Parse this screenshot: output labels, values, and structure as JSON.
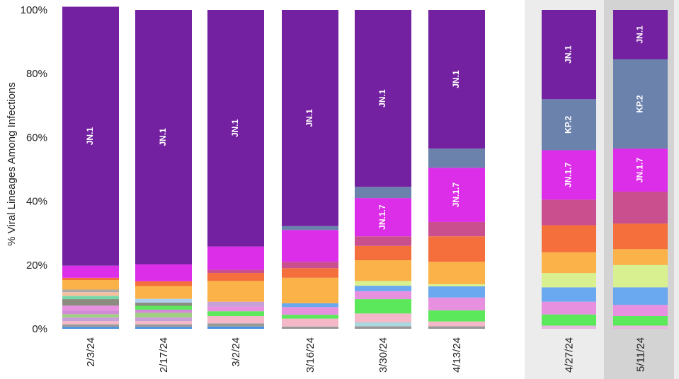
{
  "chart_data": {
    "type": "bar",
    "stacked": true,
    "ylabel": "% Viral Lineages Among Infections",
    "yticks": [
      "0%",
      "20%",
      "40%",
      "60%",
      "80%",
      "100%"
    ],
    "ylim": [
      0,
      100
    ],
    "categories": [
      "2/3/24",
      "2/17/24",
      "3/2/24",
      "3/16/24",
      "3/30/24",
      "4/13/24",
      "4/27/24",
      "5/11/24"
    ],
    "projected_periods": [
      "4/27/24",
      "5/11/24"
    ],
    "bars": [
      {
        "date": "2/3/24",
        "segments": [
          {
            "pct": 0.6,
            "color": "#4a90e2"
          },
          {
            "pct": 0.8,
            "color": "#999999"
          },
          {
            "pct": 1.0,
            "color": "#f4b8c8"
          },
          {
            "pct": 1.2,
            "color": "#c8a0d8"
          },
          {
            "pct": 1.0,
            "color": "#9fd080"
          },
          {
            "pct": 1.2,
            "color": "#d28ad8"
          },
          {
            "pct": 1.5,
            "color": "#e890e0"
          },
          {
            "pct": 2.0,
            "color": "#8b8b80"
          },
          {
            "pct": 1.0,
            "color": "#77d9a8"
          },
          {
            "pct": 1.2,
            "color": "#f5c0a0"
          },
          {
            "pct": 0.8,
            "color": "#aaaaaa"
          },
          {
            "pct": 3.0,
            "color": "#fbb248"
          },
          {
            "pct": 0.7,
            "color": "#f46f3c"
          },
          {
            "pct": 3.8,
            "color": "#dc2de8",
            "label": ""
          },
          {
            "pct": 81.2,
            "color": "#7321a0",
            "label": "JN.1"
          }
        ]
      },
      {
        "date": "2/17/24",
        "segments": [
          {
            "pct": 0.6,
            "color": "#4a90e2"
          },
          {
            "pct": 0.8,
            "color": "#999999"
          },
          {
            "pct": 1.0,
            "color": "#f4b8c8"
          },
          {
            "pct": 1.2,
            "color": "#c8a0d8"
          },
          {
            "pct": 1.4,
            "color": "#9fd080"
          },
          {
            "pct": 1.0,
            "color": "#d28ad8"
          },
          {
            "pct": 1.2,
            "color": "#5be85b"
          },
          {
            "pct": 1.0,
            "color": "#8b8b80"
          },
          {
            "pct": 1.2,
            "color": "#b0d0f0"
          },
          {
            "pct": 4.0,
            "color": "#fbb248"
          },
          {
            "pct": 1.5,
            "color": "#f46f3c"
          },
          {
            "pct": 5.3,
            "color": "#dc2de8"
          },
          {
            "pct": 79.8,
            "color": "#7321a0",
            "label": "JN.1"
          }
        ]
      },
      {
        "date": "3/2/24",
        "segments": [
          {
            "pct": 0.7,
            "color": "#4a90e2"
          },
          {
            "pct": 1.0,
            "color": "#999999"
          },
          {
            "pct": 2.3,
            "color": "#f4b8c8"
          },
          {
            "pct": 1.5,
            "color": "#5be85b"
          },
          {
            "pct": 1.5,
            "color": "#e890e0"
          },
          {
            "pct": 1.5,
            "color": "#c8a0d8"
          },
          {
            "pct": 6.5,
            "color": "#fbb248"
          },
          {
            "pct": 2.5,
            "color": "#f46f3c"
          },
          {
            "pct": 1.0,
            "color": "#c94f8f"
          },
          {
            "pct": 7.3,
            "color": "#dc2de8"
          },
          {
            "pct": 74.2,
            "color": "#7321a0",
            "label": "JN.1"
          }
        ]
      },
      {
        "date": "3/16/24",
        "segments": [
          {
            "pct": 0.7,
            "color": "#999999"
          },
          {
            "pct": 2.5,
            "color": "#f4b8c8"
          },
          {
            "pct": 1.2,
            "color": "#5be85b"
          },
          {
            "pct": 2.4,
            "color": "#e890e0"
          },
          {
            "pct": 1.2,
            "color": "#6aa8f0"
          },
          {
            "pct": 8.0,
            "color": "#fbb248"
          },
          {
            "pct": 3.0,
            "color": "#f46f3c"
          },
          {
            "pct": 2.0,
            "color": "#c94f8f"
          },
          {
            "pct": 10.0,
            "color": "#dc2de8"
          },
          {
            "pct": 1.2,
            "color": "#6b82ad"
          },
          {
            "pct": 67.8,
            "color": "#7321a0",
            "label": "JN.1"
          }
        ]
      },
      {
        "date": "3/30/24",
        "segments": [
          {
            "pct": 0.8,
            "color": "#999999"
          },
          {
            "pct": 1.2,
            "color": "#a8d8e0"
          },
          {
            "pct": 2.8,
            "color": "#f4b8c8"
          },
          {
            "pct": 4.5,
            "color": "#5be85b"
          },
          {
            "pct": 2.5,
            "color": "#e890e0"
          },
          {
            "pct": 1.7,
            "color": "#6aa8f0"
          },
          {
            "pct": 1.5,
            "color": "#d8f090"
          },
          {
            "pct": 6.5,
            "color": "#fbb248"
          },
          {
            "pct": 4.5,
            "color": "#f46f3c"
          },
          {
            "pct": 3.0,
            "color": "#c94f8f"
          },
          {
            "pct": 12.0,
            "color": "#dc2de8",
            "label": "JN.1.7"
          },
          {
            "pct": 3.5,
            "color": "#6b82ad"
          },
          {
            "pct": 55.5,
            "color": "#7321a0",
            "label": "JN.1"
          }
        ]
      },
      {
        "date": "4/13/24",
        "segments": [
          {
            "pct": 0.8,
            "color": "#999999"
          },
          {
            "pct": 1.5,
            "color": "#f4b8c8"
          },
          {
            "pct": 3.5,
            "color": "#5be85b"
          },
          {
            "pct": 4.0,
            "color": "#e890e0"
          },
          {
            "pct": 3.5,
            "color": "#6aa8f0"
          },
          {
            "pct": 0.7,
            "color": "#d8f090"
          },
          {
            "pct": 7.0,
            "color": "#fbb248"
          },
          {
            "pct": 8.0,
            "color": "#f46f3c"
          },
          {
            "pct": 4.5,
            "color": "#c94f8f"
          },
          {
            "pct": 17.0,
            "color": "#dc2de8",
            "label": "JN.1.7"
          },
          {
            "pct": 6.0,
            "color": "#6b82ad"
          },
          {
            "pct": 43.5,
            "color": "#7321a0",
            "label": "JN.1"
          }
        ]
      },
      {
        "date": "4/27/24",
        "segments": [
          {
            "pct": 1.0,
            "color": "#e8b8e0"
          },
          {
            "pct": 3.5,
            "color": "#5be85b"
          },
          {
            "pct": 4.0,
            "color": "#e890e0"
          },
          {
            "pct": 4.5,
            "color": "#6aa8f0"
          },
          {
            "pct": 4.5,
            "color": "#d8f090"
          },
          {
            "pct": 6.5,
            "color": "#fbb248"
          },
          {
            "pct": 8.5,
            "color": "#f46f3c"
          },
          {
            "pct": 8.0,
            "color": "#c94f8f"
          },
          {
            "pct": 15.5,
            "color": "#dc2de8",
            "label": "JN.1.7"
          },
          {
            "pct": 16.0,
            "color": "#6b82ad",
            "label": "KP.2"
          },
          {
            "pct": 28.0,
            "color": "#7321a0",
            "label": "JN.1"
          }
        ]
      },
      {
        "date": "5/11/24",
        "segments": [
          {
            "pct": 1.0,
            "color": "#e8b8e0"
          },
          {
            "pct": 3.0,
            "color": "#5be85b"
          },
          {
            "pct": 3.5,
            "color": "#e890e0"
          },
          {
            "pct": 5.5,
            "color": "#6aa8f0"
          },
          {
            "pct": 7.0,
            "color": "#d8f090"
          },
          {
            "pct": 5.0,
            "color": "#fbb248"
          },
          {
            "pct": 8.0,
            "color": "#f46f3c"
          },
          {
            "pct": 10.0,
            "color": "#c94f8f"
          },
          {
            "pct": 13.5,
            "color": "#dc2de8",
            "label": "JN.1.7"
          },
          {
            "pct": 28.0,
            "color": "#6b82ad",
            "label": "KP.2"
          },
          {
            "pct": 15.5,
            "color": "#7321a0",
            "label": "JN.1"
          }
        ]
      }
    ]
  },
  "colors": {
    "projection_bg": "#ececec",
    "highlight_bg": "#d3d3d3",
    "tick_text": "#222222",
    "label_text": "#ffffff"
  }
}
